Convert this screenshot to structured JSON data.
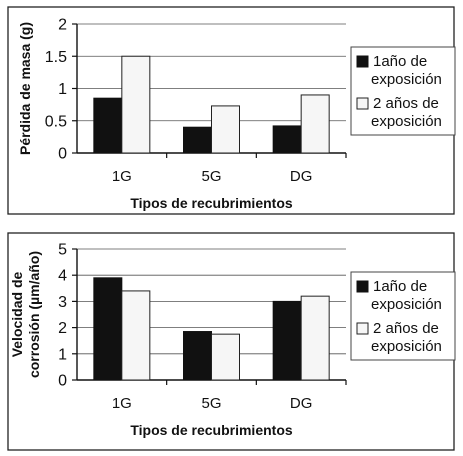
{
  "chart_data": [
    {
      "type": "bar",
      "categories": [
        "1G",
        "5G",
        "DG"
      ],
      "series": [
        {
          "name": "1año de exposición",
          "values": [
            0.85,
            0.4,
            0.42
          ],
          "color": "#111111"
        },
        {
          "name": "2 años de exposición",
          "values": [
            1.5,
            0.73,
            0.9
          ],
          "color": "#f6f6f6"
        }
      ],
      "xlabel": "Tipos de recubrimientos",
      "ylabel": "Pérdida de masa (g)",
      "ylabel_lines": [
        "Pérdida de masa (g)"
      ],
      "ylim": [
        0,
        2
      ],
      "yticks": [
        0,
        0.5,
        1,
        1.5,
        2
      ],
      "ytick_labels": [
        "0",
        "0.5",
        "1",
        "1.5",
        "2"
      ],
      "grid": true,
      "legend_position": "right",
      "legend_lines": [
        [
          "1año de",
          "exposición"
        ],
        [
          "2 años de",
          "exposición"
        ]
      ]
    },
    {
      "type": "bar",
      "categories": [
        "1G",
        "5G",
        "DG"
      ],
      "series": [
        {
          "name": "1año de exposición",
          "values": [
            3.9,
            1.85,
            3.0
          ],
          "color": "#111111"
        },
        {
          "name": "2 años de exposición",
          "values": [
            3.4,
            1.75,
            3.2
          ],
          "color": "#f6f6f6"
        }
      ],
      "xlabel": "Tipos de recubrimientos",
      "ylabel": "Velocidad de corrosión (µm/año)",
      "ylabel_lines": [
        "Velocidad de",
        "corrosión (µm/año)"
      ],
      "ylim": [
        0,
        5
      ],
      "yticks": [
        0,
        1,
        2,
        3,
        4,
        5
      ],
      "ytick_labels": [
        "0",
        "1",
        "2",
        "3",
        "4",
        "5"
      ],
      "grid": true,
      "legend_position": "right",
      "legend_lines": [
        [
          "1año de",
          "exposición"
        ],
        [
          "2 años de",
          "exposición"
        ]
      ]
    }
  ]
}
